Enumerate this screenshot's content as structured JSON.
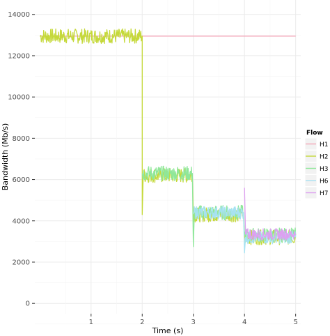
{
  "chart_data": {
    "type": "line",
    "xlabel": "Time (s)",
    "ylabel": "Bandwidth (Mb/s)",
    "xlim": [
      -0.1,
      5.1
    ],
    "ylim": [
      -500,
      14700
    ],
    "x_ticks": [
      1,
      2,
      3,
      4,
      5
    ],
    "y_ticks": [
      0,
      2000,
      4000,
      6000,
      8000,
      10000,
      12000,
      14000
    ],
    "grid": true,
    "legend": {
      "title": "Flow",
      "placement": "right",
      "entries": [
        "H1",
        "H2",
        "H3",
        "H6",
        "H7"
      ]
    },
    "series": [
      {
        "name": "H1",
        "color": "#f4a7b9",
        "noise": 0,
        "points": [
          [
            0.0,
            12950
          ],
          [
            5.0,
            12950
          ]
        ]
      },
      {
        "name": "H2",
        "color": "#c5d93a",
        "noise": 450,
        "points": [
          [
            0.0,
            12950
          ],
          [
            2.0,
            12950
          ],
          [
            2.0,
            4300
          ],
          [
            2.02,
            6200
          ],
          [
            2.98,
            6200
          ],
          [
            3.0,
            4300
          ],
          [
            3.98,
            4300
          ],
          [
            4.0,
            3200
          ],
          [
            5.0,
            3200
          ]
        ]
      },
      {
        "name": "H3",
        "color": "#8fe79a",
        "noise": 450,
        "points": [
          [
            2.0,
            6300
          ],
          [
            2.98,
            6300
          ],
          [
            3.0,
            2750
          ],
          [
            3.02,
            4400
          ],
          [
            3.98,
            4400
          ],
          [
            4.0,
            3300
          ],
          [
            5.0,
            3300
          ]
        ]
      },
      {
        "name": "H6",
        "color": "#a7e2f2",
        "noise": 400,
        "points": [
          [
            3.0,
            4400
          ],
          [
            3.98,
            4400
          ],
          [
            4.0,
            2450
          ],
          [
            4.02,
            3200
          ],
          [
            5.0,
            3200
          ]
        ]
      },
      {
        "name": "H7",
        "color": "#dda0f0",
        "noise": 350,
        "points": [
          [
            4.0,
            5600
          ],
          [
            4.02,
            3350
          ],
          [
            5.0,
            3350
          ]
        ]
      }
    ]
  }
}
